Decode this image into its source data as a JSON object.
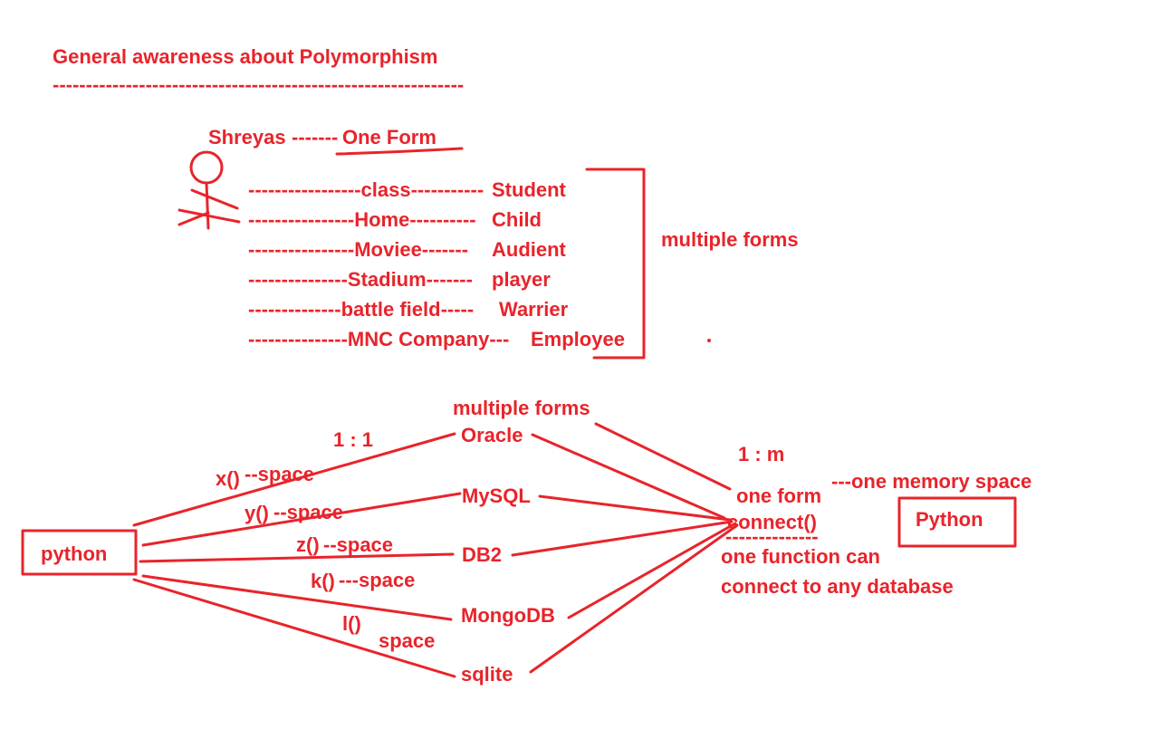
{
  "color": "#e8242b",
  "title": "General awareness about Polymorphism",
  "title_underline": "--------------------------------------------------------------",
  "person": {
    "name": "Shreyas",
    "connector": "-------",
    "one_form": "One Form",
    "roles": [
      {
        "place": "-----------------class-----------",
        "role": "Student"
      },
      {
        "place": "----------------Home----------",
        "role": "Child"
      },
      {
        "place": "----------------Moviee-------",
        "role": "Audient"
      },
      {
        "place": "---------------Stadium-------",
        "role": "player"
      },
      {
        "place": "--------------battle field-----",
        "role": "Warrier"
      },
      {
        "place": "---------------MNC Company---",
        "role": "Employee"
      }
    ],
    "multiple_forms": "multiple forms"
  },
  "db_diagram": {
    "source_box": "python",
    "ratio_one_to_one": "1 : 1",
    "multiple_forms": "multiple forms",
    "databases": [
      "Oracle",
      "MySQL",
      "DB2",
      "MongoDB",
      "sqlite"
    ],
    "functions": [
      {
        "name": "x()",
        "space": "--space"
      },
      {
        "name": "y()",
        "space": "--space"
      },
      {
        "name": "z()",
        "space": "--space"
      },
      {
        "name": "k()",
        "space": "---space"
      },
      {
        "name": "l()",
        "space": "space"
      }
    ],
    "ratio_one_to_many": "1 : m",
    "one_form": "one form",
    "connect": "connect()",
    "connect_underline": "--------------",
    "memory": "---one memory space",
    "target_box": "Python",
    "note_line1": "one function can",
    "note_line2": "connect to any database"
  }
}
